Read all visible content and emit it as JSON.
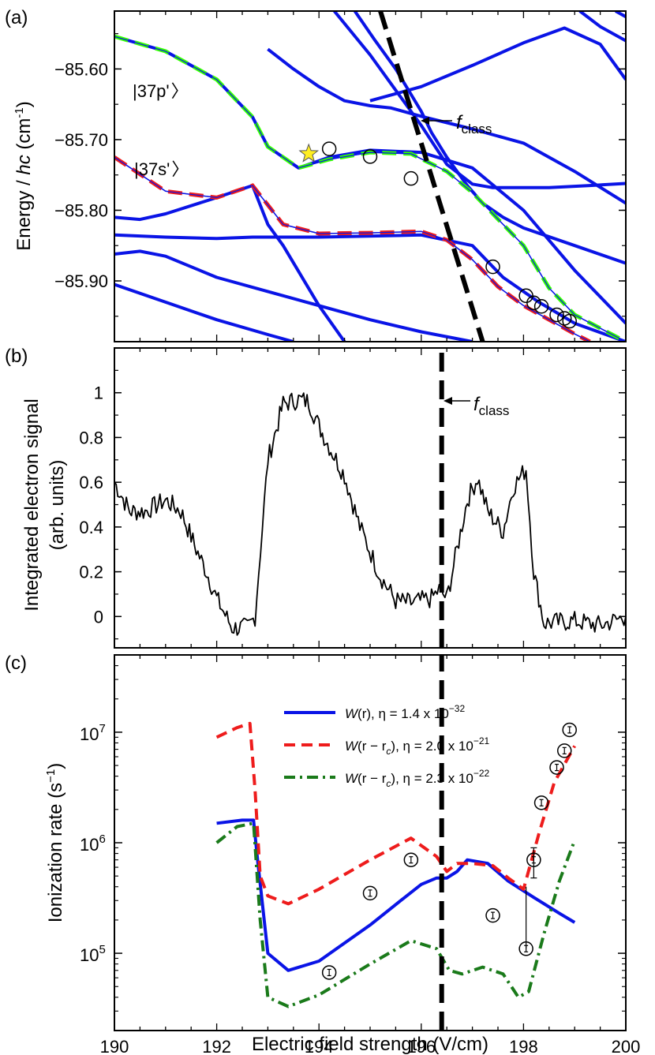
{
  "figure": {
    "shared_xlabel": "Electric field strength (V/cm)",
    "xticks": [
      "190",
      "192",
      "194",
      "196",
      "198",
      "200"
    ]
  },
  "colors": {
    "blue": "#0a14e6",
    "red": "#ee1c1c",
    "green": "#1a7a1a",
    "lime": "#33ff00",
    "black": "#000000",
    "star": "#ffee22"
  },
  "panels": {
    "a": {
      "label": "(a)",
      "ylabel_prefix": "Energy / ",
      "ylabel_hc": "hc",
      "ylabel_unit": " (cm",
      "ylabel_exp": "-1",
      "ylabel_close": ")",
      "yticks": [
        "-85.60",
        "-85.70",
        "-85.80",
        "-85.90"
      ],
      "state_p": "|37p'",
      "state_s": "|37s'",
      "fclass_f": "f",
      "fclass_sub": "class"
    },
    "b": {
      "label": "(b)",
      "ylabel_line1": "Integrated electron signal",
      "ylabel_line2": "(arb. units)",
      "yticks": [
        "0",
        "0.2",
        "0.4",
        "0.6",
        "0.8",
        "1"
      ],
      "fclass_f": "f",
      "fclass_sub": "class"
    },
    "c": {
      "label": "(c)",
      "ylabel_main": "Ionization rate (s",
      "ylabel_exp": "−1",
      "ylabel_close": ")",
      "ytick_exponents": [
        "5",
        "6",
        "7"
      ],
      "ytick_base": "10",
      "legend": [
        {
          "w": "W",
          "arg": "(r)",
          "eta": ", η = 1.4 x 10",
          "exp": "−32"
        },
        {
          "w": "W",
          "arg": "(r − r",
          "sub": "c",
          "arg2": "), ",
          "eta": "η = 2.0 x 10",
          "exp": "−21"
        },
        {
          "w": "W",
          "arg": "(r − r",
          "sub": "c",
          "arg2": "), ",
          "eta": "η = 2.3 x 10",
          "exp": "−22"
        }
      ]
    }
  },
  "chart_data": [
    {
      "type": "line",
      "panel": "a",
      "xlabel": "",
      "ylabel": "Energy / hc (cm-1)",
      "xlim": [
        190,
        200
      ],
      "ylim": [
        -85.986,
        -85.518
      ],
      "log_y": false,
      "series": [
        {
          "style": "blue",
          "x": [
            190,
            191,
            192,
            192.7,
            193,
            193.6,
            194.2,
            195,
            196,
            197,
            198,
            199,
            200
          ],
          "y": [
            -85.554,
            -85.575,
            -85.615,
            -85.668,
            -85.71,
            -85.74,
            -85.725,
            -85.715,
            -85.718,
            -85.74,
            -85.8,
            -85.885,
            -85.96
          ]
        },
        {
          "style": "blue",
          "x": [
            190,
            190.5,
            191,
            192,
            192.7,
            193,
            193.3,
            194,
            194.5
          ],
          "y": [
            -85.81,
            -85.813,
            -85.805,
            -85.782,
            -85.765,
            -85.82,
            -85.85,
            -85.935,
            -85.986
          ]
        },
        {
          "style": "blue",
          "x": [
            190,
            191,
            192,
            192.7,
            194,
            196,
            197,
            197.6,
            198.3,
            199,
            200
          ],
          "y": [
            -85.835,
            -85.838,
            -85.84,
            -85.838,
            -85.838,
            -85.835,
            -85.85,
            -85.895,
            -85.93,
            -85.96,
            -85.986
          ]
        },
        {
          "style": "blue",
          "x": [
            190,
            190.5,
            191,
            192,
            193,
            194,
            195,
            196,
            197
          ],
          "y": [
            -85.862,
            -85.858,
            -85.865,
            -85.895,
            -85.915,
            -85.935,
            -85.955,
            -85.972,
            -85.986
          ]
        },
        {
          "style": "blue",
          "x": [
            190,
            191,
            192,
            193,
            193.5
          ],
          "y": [
            -85.905,
            -85.93,
            -85.955,
            -85.976,
            -85.986
          ]
        },
        {
          "style": "blue",
          "x": [
            193,
            193.5,
            194,
            194.5,
            195,
            195.4,
            196,
            197,
            197.5,
            198,
            199,
            200
          ],
          "y": [
            -85.572,
            -85.6,
            -85.625,
            -85.645,
            -85.652,
            -85.655,
            -85.667,
            -85.685,
            -85.695,
            -85.705,
            -85.745,
            -85.79
          ]
        },
        {
          "style": "blue",
          "x": [
            195,
            196,
            197,
            198,
            198.8,
            199.5,
            200
          ],
          "y": [
            -85.645,
            -85.625,
            -85.595,
            -85.563,
            -85.542,
            -85.565,
            -85.615
          ]
        },
        {
          "style": "blue",
          "x": [
            194.3,
            195,
            195.4,
            196,
            196.5,
            197,
            197.4,
            197.8,
            198.5,
            199.3,
            200
          ],
          "y": [
            -85.518,
            -85.58,
            -85.62,
            -85.68,
            -85.735,
            -85.763,
            -85.768,
            -85.768,
            -85.768,
            -85.765,
            -85.762
          ]
        },
        {
          "style": "blue",
          "x": [
            194.7,
            195.1,
            195.5,
            196,
            196.2,
            196.5,
            196.9,
            197.2,
            197.6,
            198,
            199,
            200
          ],
          "y": [
            -85.518,
            -85.56,
            -85.6,
            -85.66,
            -85.69,
            -85.725,
            -85.765,
            -85.79,
            -85.81,
            -85.825,
            -85.85,
            -85.875
          ]
        },
        {
          "style": "blue",
          "x": [
            199.1,
            199.5,
            200
          ],
          "y": [
            -85.518,
            -85.54,
            -85.56
          ]
        },
        {
          "style": "blue",
          "x": [
            199.8,
            200
          ],
          "y": [
            -85.518,
            -85.526
          ]
        },
        {
          "style": "green",
          "x": [
            190,
            191,
            192,
            192.7,
            193,
            193.6,
            194.2,
            195,
            195.8,
            196.5,
            197,
            198,
            198.5,
            199,
            200
          ],
          "y": [
            -85.554,
            -85.575,
            -85.615,
            -85.668,
            -85.71,
            -85.74,
            -85.728,
            -85.718,
            -85.72,
            -85.745,
            -85.775,
            -85.85,
            -85.91,
            -85.948,
            -85.986
          ]
        },
        {
          "style": "red",
          "x": [
            190,
            191,
            192,
            192.7,
            193.3,
            194,
            195,
            196,
            196.5,
            197,
            197.5,
            198,
            198.5,
            199,
            199.3
          ],
          "y": [
            -85.725,
            -85.773,
            -85.782,
            -85.765,
            -85.82,
            -85.833,
            -85.832,
            -85.83,
            -85.842,
            -85.87,
            -85.908,
            -85.935,
            -85.955,
            -85.975,
            -85.986
          ]
        },
        {
          "style": "black-dash",
          "name": "f_class",
          "x": [
            195.2,
            197.2
          ],
          "y": [
            -85.518,
            -85.986
          ]
        }
      ],
      "markers": [
        {
          "symbol": "star",
          "x": [
            193.8
          ],
          "y": [
            -85.72
          ]
        },
        {
          "symbol": "circle",
          "x": [
            194.2,
            195.0,
            195.8,
            197.4,
            198.05,
            198.2,
            198.35,
            198.65,
            198.8,
            198.9
          ],
          "y": [
            -85.713,
            -85.724,
            -85.755,
            -85.88,
            -85.921,
            -85.931,
            -85.936,
            -85.948,
            -85.953,
            -85.957
          ]
        }
      ]
    },
    {
      "type": "line",
      "panel": "b",
      "xlabel": "",
      "ylabel": "Integrated electron signal (arb. units)",
      "xlim": [
        190,
        200
      ],
      "ylim": [
        -0.14,
        1.2
      ],
      "log_y": false,
      "series": [
        {
          "style": "black",
          "x": [
            190,
            190.3,
            190.6,
            191,
            191.3,
            191.6,
            191.8,
            192,
            192.3,
            192.6,
            192.75,
            193,
            193.3,
            193.6,
            193.8,
            194,
            194.2,
            194.5,
            194.8,
            195.2,
            195.5,
            195.8,
            196.2,
            196.35,
            196.5,
            196.7,
            196.9,
            197.1,
            197.3,
            197.6,
            197.8,
            198.05,
            198.2,
            198.4,
            199,
            199.5,
            200
          ],
          "y": [
            0.6,
            0.47,
            0.47,
            0.52,
            0.47,
            0.3,
            0.2,
            0.08,
            -0.05,
            -0.05,
            0.0,
            0.7,
            0.95,
            0.97,
            0.96,
            0.85,
            0.76,
            0.63,
            0.4,
            0.18,
            0.07,
            0.06,
            0.08,
            0.12,
            0.08,
            0.3,
            0.52,
            0.62,
            0.47,
            0.38,
            0.58,
            0.66,
            0.2,
            -0.03,
            -0.02,
            -0.04,
            0.0
          ]
        },
        {
          "style": "black-dash",
          "name": "f_class",
          "x": [
            196.4,
            196.4
          ],
          "y": [
            -0.14,
            1.2
          ]
        }
      ]
    },
    {
      "type": "line",
      "panel": "c",
      "xlabel": "Electric field strength (V/cm)",
      "ylabel": "Ionization rate (s-1)",
      "xlim": [
        190,
        200
      ],
      "ylim": [
        20000,
        50000000
      ],
      "log_y": true,
      "series": [
        {
          "name": "W(r), η = 1.4 x 10^−32",
          "style": "blue",
          "x": [
            192,
            192.5,
            192.72,
            192.8,
            193,
            193.4,
            194,
            195,
            195.6,
            196,
            196.3,
            196.5,
            196.7,
            196.9,
            197.3,
            197.7,
            198.2,
            198.7,
            199
          ],
          "y": [
            1500000,
            1600000,
            1600000,
            700000,
            100000,
            70000,
            85000,
            180000,
            300000,
            420000,
            480000,
            480000,
            550000,
            700000,
            650000,
            450000,
            320000,
            230000,
            190000
          ]
        },
        {
          "name": "W(r − r_c), η = 2.0 x 10^−21",
          "style": "red",
          "x": [
            192,
            192.4,
            192.65,
            192.75,
            192.85,
            193,
            193.4,
            194,
            195,
            195.8,
            196.3,
            196.5,
            196.7,
            197,
            197.4,
            197.7,
            198,
            198.3,
            198.6,
            199
          ],
          "y": [
            9000000,
            11000000,
            12000000,
            3000000,
            500000,
            330000,
            280000,
            380000,
            700000,
            1100000,
            750000,
            550000,
            650000,
            650000,
            620000,
            480000,
            380000,
            1200000,
            3500000,
            7500000
          ]
        },
        {
          "name": "W(r − r_c), η = 2.3 x 10^−22",
          "style": "green",
          "x": [
            192,
            192.4,
            192.72,
            192.85,
            193,
            193.4,
            194,
            195,
            195.8,
            196.3,
            196.55,
            196.8,
            197.2,
            197.6,
            197.9,
            198.1,
            198.4,
            198.7,
            199
          ],
          "y": [
            1000000,
            1400000,
            1500000,
            200000,
            40000,
            33000,
            42000,
            80000,
            130000,
            110000,
            70000,
            65000,
            75000,
            65000,
            40000,
            45000,
            150000,
            450000,
            1050000
          ]
        },
        {
          "style": "black-dash",
          "name": "f_class",
          "x": [
            196.4,
            196.4
          ],
          "y": [
            20000,
            50000000
          ]
        }
      ],
      "markers": [
        {
          "symbol": "circle-errorbar",
          "x": [
            194.2,
            195.0,
            195.8,
            197.4,
            198.05,
            198.2,
            198.35,
            198.65,
            198.8,
            198.9
          ],
          "y": [
            67000,
            350000,
            700000,
            220000,
            110000,
            700000,
            2300000,
            4800000,
            6800000,
            10500000
          ]
        }
      ]
    }
  ]
}
